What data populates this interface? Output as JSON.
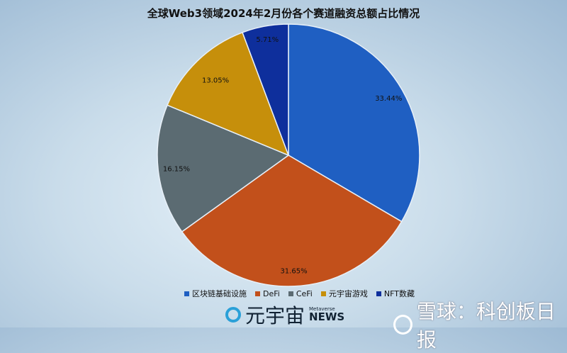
{
  "chart_data": {
    "type": "pie",
    "title": "全球Web3领域2024年2月份各个赛道融资总额占比情况",
    "start": "top",
    "direction": "clockwise",
    "legend_position": "bottom",
    "slices": [
      {
        "name": "区块链基础设施",
        "value": 33.44,
        "label": "33.44%",
        "color": "#1f5fc2"
      },
      {
        "name": "DeFi",
        "value": 31.65,
        "label": "31.65%",
        "color": "#c2501b"
      },
      {
        "name": "CeFi",
        "value": 16.15,
        "label": "16.15%",
        "color": "#5b6b72"
      },
      {
        "name": "元宇宙游戏",
        "value": 13.05,
        "label": "13.05%",
        "color": "#c68f0b"
      },
      {
        "name": "NFT数藏",
        "value": 5.71,
        "label": "5.71%",
        "color": "#0e2f9c"
      }
    ]
  },
  "watermarks": {
    "brand1_cn": "元宇宙",
    "brand1_small": "Metaverse",
    "brand1_en": "NEWS",
    "brand2": "雪球：科创板日报"
  }
}
